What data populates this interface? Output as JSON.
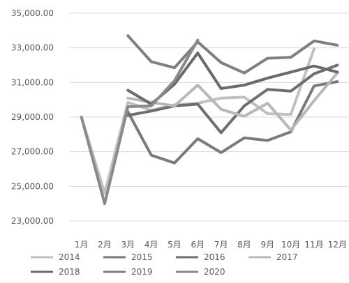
{
  "chart_data": {
    "type": "line",
    "title": "",
    "xlabel": "",
    "ylabel": "",
    "categories": [
      "1月",
      "2月",
      "3月",
      "4月",
      "5月",
      "6月",
      "7月",
      "8月",
      "9月",
      "10月",
      "11月",
      "12月"
    ],
    "ylim": [
      23000,
      35000
    ],
    "yticks": [
      23000,
      25000,
      27000,
      29000,
      31000,
      33000,
      35000
    ],
    "ytick_labels": [
      "23,000.00",
      "25,000.00",
      "27,000.00",
      "29,000.00",
      "31,000.00",
      "33,000.00",
      "35,000.00"
    ],
    "grid": "horizontal",
    "legend_position": "bottom",
    "series": [
      {
        "name": "2014",
        "color": "#c0c0c0",
        "values": [
          29000,
          24600,
          29850,
          29400,
          29700,
          29800,
          30100,
          30150,
          29200,
          29150,
          32950,
          null
        ]
      },
      {
        "name": "2015",
        "color": "#7a7a7a",
        "values": [
          null,
          null,
          29300,
          26800,
          26350,
          27750,
          26950,
          27800,
          27650,
          28150,
          30800,
          31050
        ]
      },
      {
        "name": "2016",
        "color": "#6e6e6e",
        "values": [
          null,
          null,
          29100,
          29350,
          29650,
          29750,
          28100,
          29650,
          30600,
          30500,
          31500,
          32000
        ]
      },
      {
        "name": "2017",
        "color": "#b8b8b8",
        "values": [
          null,
          null,
          30100,
          29850,
          29650,
          30850,
          29450,
          29050,
          29800,
          28250,
          29950,
          31550
        ]
      },
      {
        "name": "2018",
        "color": "#6a6a6a",
        "values": [
          null,
          null,
          30550,
          29750,
          30900,
          32700,
          30650,
          30850,
          31250,
          31600,
          31950,
          31600
        ]
      },
      {
        "name": "2019",
        "color": "#7f7f7f",
        "values": [
          null,
          null,
          33700,
          32200,
          31850,
          33350,
          32150,
          31550,
          32400,
          32450,
          33400,
          33150
        ]
      },
      {
        "name": "2020",
        "color": "#8a8a8a",
        "values": [
          29000,
          24000,
          29600,
          29650,
          31100,
          33450,
          null,
          null,
          null,
          null,
          null,
          null
        ]
      }
    ]
  }
}
